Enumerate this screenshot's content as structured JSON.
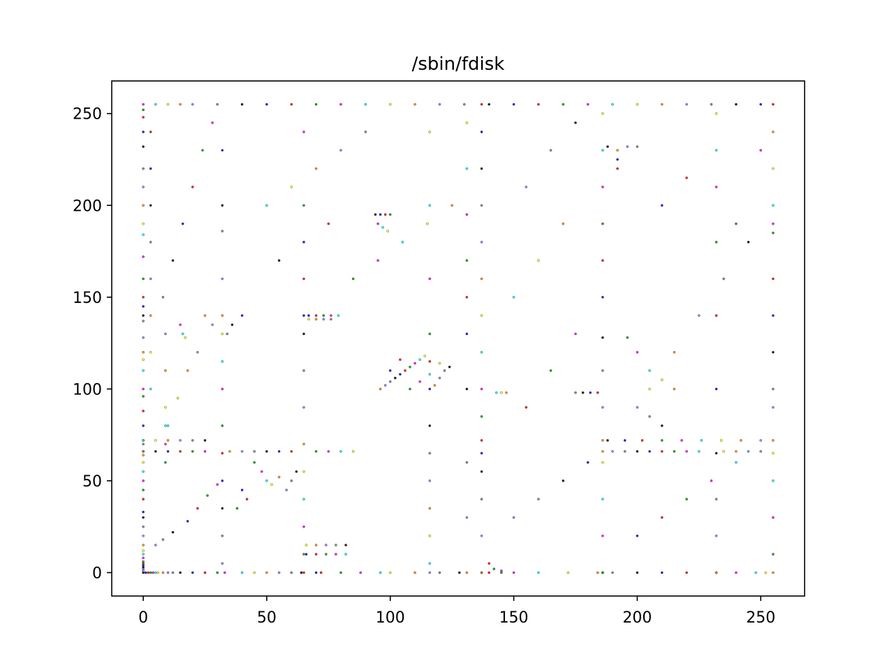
{
  "chart_data": {
    "type": "scatter",
    "title": "/sbin/fdisk",
    "xlabel": "",
    "ylabel": "",
    "xlim": [
      -12.75,
      267.75
    ],
    "ylim": [
      -12.75,
      267.75
    ],
    "xticks": [
      0,
      50,
      100,
      150,
      200,
      250
    ],
    "yticks": [
      0,
      50,
      100,
      150,
      200,
      250
    ],
    "grid": false,
    "legend": "none",
    "colors": [
      "#000000",
      "#0000ff",
      "#ff0000",
      "#00a000",
      "#ff00ff",
      "#00ffff",
      "#ffff00",
      "#ff8c00",
      "#8080ff",
      "#808080"
    ],
    "note_values": "Byte-pair (x, y) occurrence plot; each point is one observed pair.",
    "points": [
      [
        0,
        0
      ],
      [
        1,
        0
      ],
      [
        2,
        0
      ],
      [
        3,
        0
      ],
      [
        4,
        0
      ],
      [
        5,
        0
      ],
      [
        6,
        0
      ],
      [
        8,
        0
      ],
      [
        10,
        0
      ],
      [
        12,
        0
      ],
      [
        15,
        0
      ],
      [
        20,
        0
      ],
      [
        25,
        0
      ],
      [
        30,
        0
      ],
      [
        33,
        0
      ],
      [
        40,
        0
      ],
      [
        45,
        0
      ],
      [
        50,
        0
      ],
      [
        55,
        0
      ],
      [
        60,
        0
      ],
      [
        64,
        0
      ],
      [
        70,
        0
      ],
      [
        72,
        0
      ],
      [
        80,
        0
      ],
      [
        88,
        0
      ],
      [
        96,
        0
      ],
      [
        100,
        0
      ],
      [
        110,
        0
      ],
      [
        116,
        0
      ],
      [
        120,
        0
      ],
      [
        128,
        0
      ],
      [
        137,
        0
      ],
      [
        140,
        0
      ],
      [
        145,
        0
      ],
      [
        150,
        0
      ],
      [
        160,
        0
      ],
      [
        172,
        0
      ],
      [
        184,
        0
      ],
      [
        186,
        0
      ],
      [
        190,
        0
      ],
      [
        200,
        0
      ],
      [
        210,
        0
      ],
      [
        220,
        0
      ],
      [
        232,
        0
      ],
      [
        240,
        0
      ],
      [
        248,
        0
      ],
      [
        252,
        0
      ],
      [
        255,
        0
      ],
      [
        0,
        1
      ],
      [
        0,
        2
      ],
      [
        0,
        3
      ],
      [
        0,
        4
      ],
      [
        0,
        5
      ],
      [
        0,
        6
      ],
      [
        0,
        8
      ],
      [
        0,
        10
      ],
      [
        0,
        12
      ],
      [
        0,
        15
      ],
      [
        0,
        20
      ],
      [
        0,
        25
      ],
      [
        0,
        30
      ],
      [
        0,
        33
      ],
      [
        0,
        40
      ],
      [
        0,
        45
      ],
      [
        0,
        50
      ],
      [
        0,
        55
      ],
      [
        0,
        60
      ],
      [
        0,
        64
      ],
      [
        0,
        66
      ],
      [
        0,
        70
      ],
      [
        0,
        72
      ],
      [
        0,
        80
      ],
      [
        0,
        88
      ],
      [
        0,
        96
      ],
      [
        0,
        100
      ],
      [
        0,
        110
      ],
      [
        0,
        116
      ],
      [
        0,
        120
      ],
      [
        0,
        128
      ],
      [
        0,
        137
      ],
      [
        0,
        140
      ],
      [
        0,
        145
      ],
      [
        0,
        150
      ],
      [
        0,
        160
      ],
      [
        0,
        172
      ],
      [
        0,
        184
      ],
      [
        0,
        190
      ],
      [
        0,
        200
      ],
      [
        0,
        210
      ],
      [
        0,
        220
      ],
      [
        0,
        232
      ],
      [
        0,
        240
      ],
      [
        0,
        248
      ],
      [
        0,
        252
      ],
      [
        0,
        255
      ],
      [
        5,
        255
      ],
      [
        10,
        255
      ],
      [
        15,
        255
      ],
      [
        20,
        255
      ],
      [
        30,
        255
      ],
      [
        40,
        255
      ],
      [
        50,
        255
      ],
      [
        60,
        255
      ],
      [
        70,
        255
      ],
      [
        80,
        255
      ],
      [
        90,
        255
      ],
      [
        100,
        255
      ],
      [
        110,
        255
      ],
      [
        120,
        255
      ],
      [
        130,
        255
      ],
      [
        140,
        255
      ],
      [
        150,
        255
      ],
      [
        160,
        255
      ],
      [
        170,
        255
      ],
      [
        180,
        255
      ],
      [
        190,
        255
      ],
      [
        200,
        255
      ],
      [
        210,
        255
      ],
      [
        220,
        255
      ],
      [
        230,
        255
      ],
      [
        240,
        255
      ],
      [
        250,
        255
      ],
      [
        255,
        255
      ],
      [
        255,
        10
      ],
      [
        255,
        30
      ],
      [
        255,
        50
      ],
      [
        255,
        65
      ],
      [
        255,
        72
      ],
      [
        255,
        90
      ],
      [
        255,
        100
      ],
      [
        255,
        120
      ],
      [
        255,
        140
      ],
      [
        255,
        160
      ],
      [
        255,
        185
      ],
      [
        255,
        190
      ],
      [
        255,
        200
      ],
      [
        255,
        220
      ],
      [
        255,
        240
      ],
      [
        32,
        5
      ],
      [
        32,
        20
      ],
      [
        32,
        35
      ],
      [
        32,
        50
      ],
      [
        32,
        65
      ],
      [
        32,
        80
      ],
      [
        32,
        100
      ],
      [
        32,
        115
      ],
      [
        32,
        130
      ],
      [
        32,
        140
      ],
      [
        32,
        160
      ],
      [
        32,
        186
      ],
      [
        32,
        200
      ],
      [
        32,
        230
      ],
      [
        65,
        0
      ],
      [
        65,
        10
      ],
      [
        65,
        25
      ],
      [
        65,
        40
      ],
      [
        65,
        55
      ],
      [
        65,
        70
      ],
      [
        65,
        90
      ],
      [
        65,
        110
      ],
      [
        65,
        130
      ],
      [
        65,
        140
      ],
      [
        65,
        160
      ],
      [
        65,
        200
      ],
      [
        65,
        240
      ],
      [
        116,
        5
      ],
      [
        116,
        20
      ],
      [
        116,
        35
      ],
      [
        116,
        50
      ],
      [
        116,
        65
      ],
      [
        116,
        80
      ],
      [
        116,
        100
      ],
      [
        116,
        115
      ],
      [
        116,
        130
      ],
      [
        116,
        160
      ],
      [
        116,
        200
      ],
      [
        116,
        240
      ],
      [
        131,
        0
      ],
      [
        131,
        30
      ],
      [
        131,
        60
      ],
      [
        131,
        100
      ],
      [
        131,
        130
      ],
      [
        131,
        150
      ],
      [
        131,
        170
      ],
      [
        131,
        195
      ],
      [
        131,
        220
      ],
      [
        131,
        245
      ],
      [
        137,
        0
      ],
      [
        137,
        20
      ],
      [
        137,
        40
      ],
      [
        137,
        55
      ],
      [
        137,
        65
      ],
      [
        137,
        72
      ],
      [
        137,
        85
      ],
      [
        137,
        100
      ],
      [
        137,
        120
      ],
      [
        137,
        140
      ],
      [
        137,
        160
      ],
      [
        137,
        180
      ],
      [
        137,
        200
      ],
      [
        137,
        220
      ],
      [
        137,
        240
      ],
      [
        137,
        255
      ],
      [
        186,
        0
      ],
      [
        186,
        20
      ],
      [
        186,
        40
      ],
      [
        186,
        60
      ],
      [
        186,
        72
      ],
      [
        186,
        90
      ],
      [
        186,
        110
      ],
      [
        186,
        128
      ],
      [
        186,
        150
      ],
      [
        186,
        170
      ],
      [
        186,
        190
      ],
      [
        186,
        210
      ],
      [
        186,
        230
      ],
      [
        186,
        250
      ],
      [
        232,
        0
      ],
      [
        232,
        20
      ],
      [
        232,
        40
      ],
      [
        232,
        65
      ],
      [
        232,
        100
      ],
      [
        232,
        140
      ],
      [
        232,
        180
      ],
      [
        232,
        210
      ],
      [
        232,
        230
      ],
      [
        232,
        250
      ],
      [
        96,
        100
      ],
      [
        98,
        102
      ],
      [
        100,
        104
      ],
      [
        102,
        106
      ],
      [
        104,
        108
      ],
      [
        106,
        110
      ],
      [
        108,
        112
      ],
      [
        110,
        114
      ],
      [
        112,
        116
      ],
      [
        114,
        118
      ],
      [
        118,
        102
      ],
      [
        120,
        106
      ],
      [
        122,
        110
      ],
      [
        124,
        112
      ],
      [
        100,
        110
      ],
      [
        104,
        116
      ],
      [
        108,
        100
      ],
      [
        112,
        104
      ],
      [
        116,
        108
      ],
      [
        120,
        114
      ],
      [
        35,
        66
      ],
      [
        40,
        66
      ],
      [
        45,
        66
      ],
      [
        50,
        66
      ],
      [
        55,
        66
      ],
      [
        60,
        66
      ],
      [
        70,
        66
      ],
      [
        75,
        66
      ],
      [
        80,
        66
      ],
      [
        85,
        66
      ],
      [
        186,
        66
      ],
      [
        190,
        66
      ],
      [
        195,
        66
      ],
      [
        200,
        66
      ],
      [
        205,
        66
      ],
      [
        210,
        66
      ],
      [
        215,
        66
      ],
      [
        220,
        66
      ],
      [
        225,
        66
      ],
      [
        235,
        66
      ],
      [
        240,
        66
      ],
      [
        245,
        66
      ],
      [
        250,
        66
      ],
      [
        188,
        72
      ],
      [
        195,
        72
      ],
      [
        202,
        72
      ],
      [
        210,
        72
      ],
      [
        218,
        72
      ],
      [
        226,
        72
      ],
      [
        234,
        72
      ],
      [
        242,
        72
      ],
      [
        250,
        72
      ],
      [
        0,
        66
      ],
      [
        5,
        66
      ],
      [
        10,
        66
      ],
      [
        15,
        66
      ],
      [
        20,
        66
      ],
      [
        25,
        66
      ],
      [
        0,
        72
      ],
      [
        5,
        72
      ],
      [
        10,
        72
      ],
      [
        15,
        72
      ],
      [
        20,
        72
      ],
      [
        25,
        72
      ],
      [
        66,
        10
      ],
      [
        70,
        10
      ],
      [
        74,
        10
      ],
      [
        78,
        10
      ],
      [
        82,
        10
      ],
      [
        66,
        15
      ],
      [
        70,
        15
      ],
      [
        74,
        15
      ],
      [
        78,
        15
      ],
      [
        82,
        15
      ],
      [
        67,
        140
      ],
      [
        70,
        140
      ],
      [
        73,
        140
      ],
      [
        76,
        140
      ],
      [
        79,
        140
      ],
      [
        67,
        138
      ],
      [
        70,
        138
      ],
      [
        73,
        138
      ],
      [
        76,
        138
      ],
      [
        94,
        195
      ],
      [
        96,
        195
      ],
      [
        98,
        195
      ],
      [
        100,
        195
      ],
      [
        95,
        190
      ],
      [
        97,
        188
      ],
      [
        99,
        186
      ],
      [
        192,
        230
      ],
      [
        196,
        232
      ],
      [
        200,
        232
      ],
      [
        188,
        232
      ],
      [
        192,
        225
      ],
      [
        192,
        220
      ],
      [
        45,
        60
      ],
      [
        48,
        55
      ],
      [
        50,
        50
      ],
      [
        52,
        48
      ],
      [
        55,
        52
      ],
      [
        58,
        45
      ],
      [
        60,
        50
      ],
      [
        62,
        55
      ],
      [
        40,
        45
      ],
      [
        42,
        40
      ],
      [
        38,
        35
      ],
      [
        15,
        135
      ],
      [
        16,
        130
      ],
      [
        17,
        128
      ],
      [
        25,
        140
      ],
      [
        28,
        135
      ],
      [
        34,
        130
      ],
      [
        36,
        135
      ],
      [
        40,
        140
      ],
      [
        140,
        5
      ],
      [
        142,
        2
      ],
      [
        145,
        1
      ],
      [
        143,
        98
      ],
      [
        145,
        98
      ],
      [
        147,
        98
      ],
      [
        5,
        15
      ],
      [
        8,
        18
      ],
      [
        12,
        22
      ],
      [
        18,
        28
      ],
      [
        22,
        35
      ],
      [
        26,
        42
      ],
      [
        30,
        48
      ],
      [
        10,
        80
      ],
      [
        14,
        95
      ],
      [
        18,
        110
      ],
      [
        22,
        120
      ],
      [
        8,
        150
      ],
      [
        12,
        170
      ],
      [
        16,
        190
      ],
      [
        20,
        210
      ],
      [
        24,
        230
      ],
      [
        28,
        245
      ],
      [
        50,
        200
      ],
      [
        60,
        210
      ],
      [
        70,
        220
      ],
      [
        80,
        230
      ],
      [
        90,
        240
      ],
      [
        55,
        170
      ],
      [
        65,
        180
      ],
      [
        75,
        190
      ],
      [
        85,
        160
      ],
      [
        95,
        170
      ],
      [
        105,
        180
      ],
      [
        115,
        190
      ],
      [
        125,
        200
      ],
      [
        150,
        30
      ],
      [
        160,
        40
      ],
      [
        170,
        50
      ],
      [
        180,
        60
      ],
      [
        155,
        90
      ],
      [
        165,
        110
      ],
      [
        175,
        130
      ],
      [
        150,
        150
      ],
      [
        160,
        170
      ],
      [
        170,
        190
      ],
      [
        155,
        210
      ],
      [
        165,
        230
      ],
      [
        175,
        245
      ],
      [
        200,
        20
      ],
      [
        210,
        30
      ],
      [
        220,
        40
      ],
      [
        230,
        50
      ],
      [
        240,
        60
      ],
      [
        205,
        100
      ],
      [
        215,
        120
      ],
      [
        225,
        140
      ],
      [
        235,
        160
      ],
      [
        245,
        180
      ],
      [
        210,
        200
      ],
      [
        220,
        215
      ],
      [
        240,
        190
      ],
      [
        250,
        230
      ],
      [
        3,
        100
      ],
      [
        3,
        120
      ],
      [
        3,
        140
      ],
      [
        3,
        160
      ],
      [
        3,
        180
      ],
      [
        3,
        200
      ],
      [
        3,
        220
      ],
      [
        3,
        240
      ],
      [
        9,
        60
      ],
      [
        9,
        70
      ],
      [
        9,
        80
      ],
      [
        9,
        90
      ],
      [
        9,
        110
      ],
      [
        9,
        130
      ],
      [
        175,
        98
      ],
      [
        178,
        98
      ],
      [
        181,
        98
      ],
      [
        184,
        98
      ],
      [
        196,
        128
      ],
      [
        200,
        120
      ],
      [
        205,
        110
      ],
      [
        210,
        105
      ],
      [
        215,
        100
      ],
      [
        200,
        90
      ],
      [
        205,
        85
      ],
      [
        210,
        80
      ]
    ]
  }
}
